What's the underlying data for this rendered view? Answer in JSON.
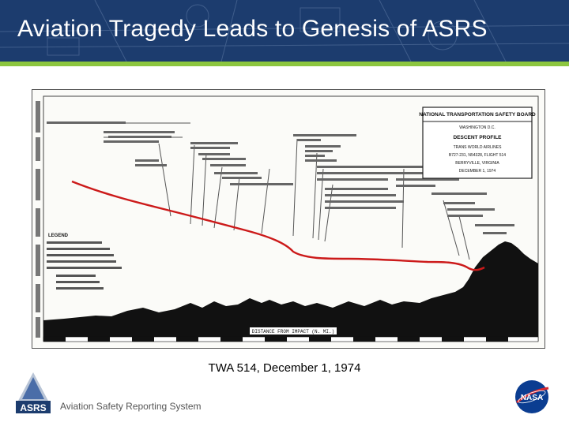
{
  "slide": {
    "title": "Aviation Tragedy Leads to Genesis of ASRS",
    "caption": "TWA 514, December 1, 1974",
    "footer": "Aviation Safety Reporting System"
  },
  "figure": {
    "board_box": {
      "line1": "NATIONAL TRANSPORTATION SAFETY BOARD",
      "line2": "WASHINGTON D.C.",
      "line3": "DESCENT PROFILE",
      "line4": "TRANS WORLD AIRLINES",
      "line5": "B727-231, N54328, FLIGHT 514",
      "line6": "BERRYVILLE, VIRGINIA",
      "line7": "DECEMBER 1, 1974"
    },
    "legend_title": "LEGEND",
    "distance_label": "DISTANCE FROM IMPACT (N. MI.)"
  },
  "logos": {
    "asrs_text": "ASRS",
    "nasa_text": "NASA"
  },
  "colors": {
    "header_bg": "#1c3c6e",
    "accent_green": "#8cc63f",
    "profile_red": "#cc1a1a",
    "terrain": "#111111"
  }
}
